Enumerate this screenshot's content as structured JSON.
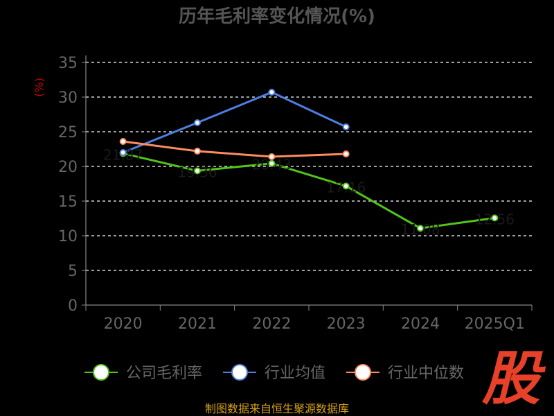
{
  "chart_data": {
    "type": "line",
    "title": "历年毛利率变化情况(%)",
    "ylabel": "(%)",
    "xlabel": "",
    "ylim": [
      0,
      35
    ],
    "y_ticks": [
      0,
      5,
      10,
      15,
      20,
      25,
      30,
      35
    ],
    "categories": [
      "2020",
      "2021",
      "2022",
      "2023",
      "2024",
      "2025Q1"
    ],
    "grid": true,
    "legend_position": "bottom",
    "series": [
      {
        "name": "公司毛利率",
        "color": "#52c41a",
        "values": [
          21.87,
          19.36,
          20.43,
          17.16,
          11.08,
          12.56
        ]
      },
      {
        "name": "行业均值",
        "color": "#4e7ee0",
        "values": [
          22.0,
          26.3,
          30.7,
          25.7,
          null,
          null
        ]
      },
      {
        "name": "行业中位数",
        "color": "#ff8c61",
        "values": [
          23.6,
          22.2,
          21.4,
          21.8,
          null,
          null
        ]
      }
    ],
    "point_labels": [
      "21.87",
      "19.36",
      "20.43",
      "17.16",
      "11.08",
      "12.56"
    ]
  },
  "footer": {
    "source": "制图数据来自恒生聚源数据库",
    "logo_text": "股"
  },
  "colors": {
    "background": "#000000",
    "axis": "#888888",
    "grid": "#ffffff",
    "title": "#555555",
    "ylabel": "#cc0000",
    "tick_label": "#666666",
    "source": "#d4a017",
    "logo": "#e8412a"
  }
}
